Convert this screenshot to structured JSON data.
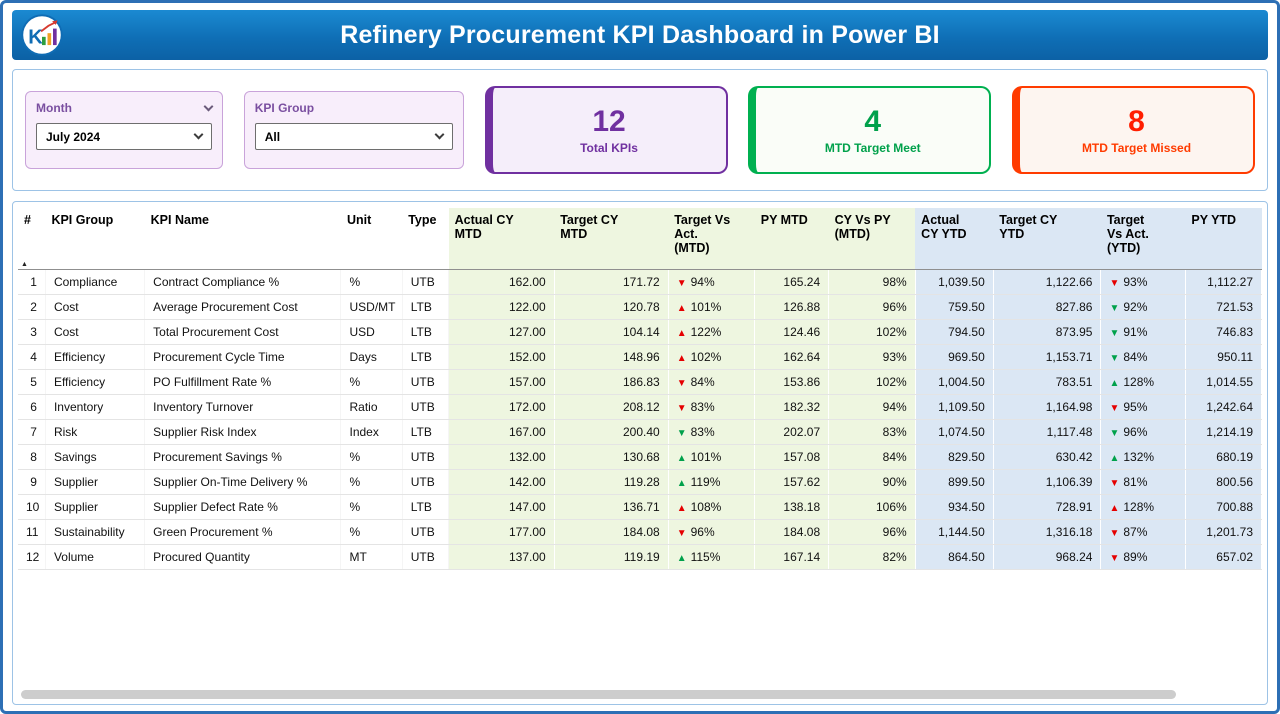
{
  "header": {
    "title": "Refinery Procurement KPI Dashboard in Power BI"
  },
  "filters": {
    "month": {
      "label": "Month",
      "value": "July 2024"
    },
    "kpi_group": {
      "label": "KPI Group",
      "value": "All"
    }
  },
  "cards": {
    "total": {
      "value": "12",
      "label": "Total KPIs",
      "color": "#7030a0"
    },
    "meet": {
      "value": "4",
      "label": "MTD Target Meet",
      "color": "#00b050"
    },
    "missed": {
      "value": "8",
      "label": "MTD Target Missed",
      "color": "#ff3b00"
    }
  },
  "colors": {
    "good": "#00a14b",
    "bad": "#e50000"
  },
  "icons": {
    "up_arrow": "▲",
    "down_arrow": "▼",
    "sort_asc": "▲"
  },
  "table": {
    "columns": [
      {
        "key": "num",
        "label": "#",
        "group": "plain",
        "align": "right"
      },
      {
        "key": "group",
        "label": "KPI Group",
        "group": "plain",
        "align": "left"
      },
      {
        "key": "name",
        "label": "KPI Name",
        "group": "plain",
        "align": "left"
      },
      {
        "key": "unit",
        "label": "Unit",
        "group": "plain",
        "align": "left"
      },
      {
        "key": "type",
        "label": "Type",
        "group": "plain",
        "align": "left"
      },
      {
        "key": "actual_mtd",
        "label": "Actual CY\nMTD",
        "group": "mtd",
        "align": "right"
      },
      {
        "key": "target_mtd",
        "label": "Target CY\nMTD",
        "group": "mtd",
        "align": "right"
      },
      {
        "key": "tva_mtd",
        "label": "Target Vs\nAct.\n(MTD)",
        "group": "mtd",
        "align": "left",
        "type": "delta"
      },
      {
        "key": "py_mtd",
        "label": "PY MTD",
        "group": "mtd",
        "align": "right"
      },
      {
        "key": "cypy_mtd",
        "label": "CY Vs PY\n(MTD)",
        "group": "mtd",
        "align": "right"
      },
      {
        "key": "actual_ytd",
        "label": "Actual\nCY YTD",
        "group": "ytd",
        "align": "right"
      },
      {
        "key": "target_ytd",
        "label": "Target CY\nYTD",
        "group": "ytd",
        "align": "right"
      },
      {
        "key": "tva_ytd",
        "label": "Target\nVs Act.\n(YTD)",
        "group": "ytd",
        "align": "left",
        "type": "delta"
      },
      {
        "key": "py_ytd",
        "label": "PY YTD",
        "group": "ytd",
        "align": "right"
      }
    ],
    "rows": [
      {
        "num": "1",
        "group": "Compliance",
        "name": "Contract Compliance %",
        "unit": "%",
        "type": "UTB",
        "actual_mtd": "162.00",
        "target_mtd": "171.72",
        "tva_mtd": {
          "dir": "down",
          "status": "bad",
          "pct": "94%"
        },
        "py_mtd": "165.24",
        "cypy_mtd": "98%",
        "actual_ytd": "1,039.50",
        "target_ytd": "1,122.66",
        "tva_ytd": {
          "dir": "down",
          "status": "bad",
          "pct": "93%"
        },
        "py_ytd": "1,112.27"
      },
      {
        "num": "2",
        "group": "Cost",
        "name": "Average Procurement Cost",
        "unit": "USD/MT",
        "type": "LTB",
        "actual_mtd": "122.00",
        "target_mtd": "120.78",
        "tva_mtd": {
          "dir": "up",
          "status": "bad",
          "pct": "101%"
        },
        "py_mtd": "126.88",
        "cypy_mtd": "96%",
        "actual_ytd": "759.50",
        "target_ytd": "827.86",
        "tva_ytd": {
          "dir": "down",
          "status": "good",
          "pct": "92%"
        },
        "py_ytd": "721.53"
      },
      {
        "num": "3",
        "group": "Cost",
        "name": "Total Procurement Cost",
        "unit": "USD",
        "type": "LTB",
        "actual_mtd": "127.00",
        "target_mtd": "104.14",
        "tva_mtd": {
          "dir": "up",
          "status": "bad",
          "pct": "122%"
        },
        "py_mtd": "124.46",
        "cypy_mtd": "102%",
        "actual_ytd": "794.50",
        "target_ytd": "873.95",
        "tva_ytd": {
          "dir": "down",
          "status": "good",
          "pct": "91%"
        },
        "py_ytd": "746.83"
      },
      {
        "num": "4",
        "group": "Efficiency",
        "name": "Procurement Cycle Time",
        "unit": "Days",
        "type": "LTB",
        "actual_mtd": "152.00",
        "target_mtd": "148.96",
        "tva_mtd": {
          "dir": "up",
          "status": "bad",
          "pct": "102%"
        },
        "py_mtd": "162.64",
        "cypy_mtd": "93%",
        "actual_ytd": "969.50",
        "target_ytd": "1,153.71",
        "tva_ytd": {
          "dir": "down",
          "status": "good",
          "pct": "84%"
        },
        "py_ytd": "950.11"
      },
      {
        "num": "5",
        "group": "Efficiency",
        "name": "PO Fulfillment Rate %",
        "unit": "%",
        "type": "UTB",
        "actual_mtd": "157.00",
        "target_mtd": "186.83",
        "tva_mtd": {
          "dir": "down",
          "status": "bad",
          "pct": "84%"
        },
        "py_mtd": "153.86",
        "cypy_mtd": "102%",
        "actual_ytd": "1,004.50",
        "target_ytd": "783.51",
        "tva_ytd": {
          "dir": "up",
          "status": "good",
          "pct": "128%"
        },
        "py_ytd": "1,014.55"
      },
      {
        "num": "6",
        "group": "Inventory",
        "name": "Inventory Turnover",
        "unit": "Ratio",
        "type": "UTB",
        "actual_mtd": "172.00",
        "target_mtd": "208.12",
        "tva_mtd": {
          "dir": "down",
          "status": "bad",
          "pct": "83%"
        },
        "py_mtd": "182.32",
        "cypy_mtd": "94%",
        "actual_ytd": "1,109.50",
        "target_ytd": "1,164.98",
        "tva_ytd": {
          "dir": "down",
          "status": "bad",
          "pct": "95%"
        },
        "py_ytd": "1,242.64"
      },
      {
        "num": "7",
        "group": "Risk",
        "name": "Supplier Risk Index",
        "unit": "Index",
        "type": "LTB",
        "actual_mtd": "167.00",
        "target_mtd": "200.40",
        "tva_mtd": {
          "dir": "down",
          "status": "good",
          "pct": "83%"
        },
        "py_mtd": "202.07",
        "cypy_mtd": "83%",
        "actual_ytd": "1,074.50",
        "target_ytd": "1,117.48",
        "tva_ytd": {
          "dir": "down",
          "status": "good",
          "pct": "96%"
        },
        "py_ytd": "1,214.19"
      },
      {
        "num": "8",
        "group": "Savings",
        "name": "Procurement Savings %",
        "unit": "%",
        "type": "UTB",
        "actual_mtd": "132.00",
        "target_mtd": "130.68",
        "tva_mtd": {
          "dir": "up",
          "status": "good",
          "pct": "101%"
        },
        "py_mtd": "157.08",
        "cypy_mtd": "84%",
        "actual_ytd": "829.50",
        "target_ytd": "630.42",
        "tva_ytd": {
          "dir": "up",
          "status": "good",
          "pct": "132%"
        },
        "py_ytd": "680.19"
      },
      {
        "num": "9",
        "group": "Supplier",
        "name": "Supplier On-Time Delivery %",
        "unit": "%",
        "type": "UTB",
        "actual_mtd": "142.00",
        "target_mtd": "119.28",
        "tva_mtd": {
          "dir": "up",
          "status": "good",
          "pct": "119%"
        },
        "py_mtd": "157.62",
        "cypy_mtd": "90%",
        "actual_ytd": "899.50",
        "target_ytd": "1,106.39",
        "tva_ytd": {
          "dir": "down",
          "status": "bad",
          "pct": "81%"
        },
        "py_ytd": "800.56"
      },
      {
        "num": "10",
        "group": "Supplier",
        "name": "Supplier Defect Rate %",
        "unit": "%",
        "type": "LTB",
        "actual_mtd": "147.00",
        "target_mtd": "136.71",
        "tva_mtd": {
          "dir": "up",
          "status": "bad",
          "pct": "108%"
        },
        "py_mtd": "138.18",
        "cypy_mtd": "106%",
        "actual_ytd": "934.50",
        "target_ytd": "728.91",
        "tva_ytd": {
          "dir": "up",
          "status": "bad",
          "pct": "128%"
        },
        "py_ytd": "700.88"
      },
      {
        "num": "11",
        "group": "Sustainability",
        "name": "Green Procurement %",
        "unit": "%",
        "type": "UTB",
        "actual_mtd": "177.00",
        "target_mtd": "184.08",
        "tva_mtd": {
          "dir": "down",
          "status": "bad",
          "pct": "96%"
        },
        "py_mtd": "184.08",
        "cypy_mtd": "96%",
        "actual_ytd": "1,144.50",
        "target_ytd": "1,316.18",
        "tva_ytd": {
          "dir": "down",
          "status": "bad",
          "pct": "87%"
        },
        "py_ytd": "1,201.73"
      },
      {
        "num": "12",
        "group": "Volume",
        "name": "Procured Quantity",
        "unit": "MT",
        "type": "UTB",
        "actual_mtd": "137.00",
        "target_mtd": "119.19",
        "tva_mtd": {
          "dir": "up",
          "status": "good",
          "pct": "115%"
        },
        "py_mtd": "167.14",
        "cypy_mtd": "82%",
        "actual_ytd": "864.50",
        "target_ytd": "968.24",
        "tva_ytd": {
          "dir": "down",
          "status": "bad",
          "pct": "89%"
        },
        "py_ytd": "657.02"
      }
    ]
  }
}
